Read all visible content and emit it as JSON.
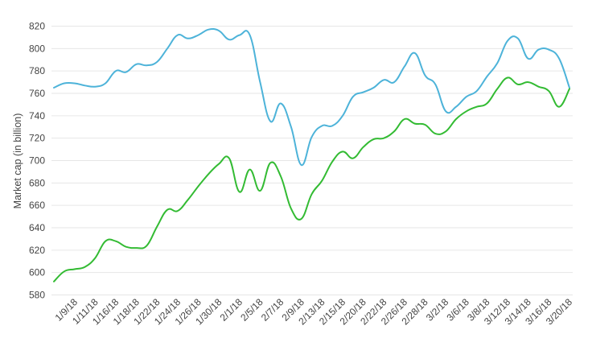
{
  "chart_data": {
    "type": "line",
    "title": "",
    "xlabel": "",
    "ylabel": "Market cap (in billion)",
    "ylim": [
      575,
      830
    ],
    "yticks": [
      580,
      600,
      620,
      640,
      660,
      680,
      700,
      720,
      740,
      760,
      780,
      800,
      820
    ],
    "grid": true,
    "legend": "none",
    "x_tick_labels": [
      "1/9/18",
      "1/11/18",
      "1/16/18",
      "1/18/18",
      "1/22/18",
      "1/24/18",
      "1/26/18",
      "1/30/18",
      "2/1/18",
      "2/5/18",
      "2/7/18",
      "2/9/18",
      "2/13/18",
      "2/15/18",
      "2/20/18",
      "2/22/18",
      "2/26/18",
      "2/28/18",
      "3/2/18",
      "3/6/18",
      "3/8/18",
      "3/12/18",
      "3/14/18",
      "3/16/18",
      "3/20/18"
    ],
    "x": [
      0,
      1,
      2,
      3,
      4,
      5,
      6,
      7,
      8,
      9,
      10,
      11,
      12,
      13,
      14,
      15,
      16,
      17,
      18,
      19,
      20,
      21,
      22,
      23,
      24,
      25,
      26,
      27,
      28,
      29,
      30,
      31,
      32,
      33,
      34,
      35,
      36,
      37,
      38,
      39,
      40,
      41,
      42,
      43,
      44,
      45,
      46,
      47,
      48,
      49,
      50
    ],
    "series": [
      {
        "color": "#4db3d9",
        "values": [
          765,
          769,
          769,
          767,
          766,
          769,
          780,
          779,
          786,
          785,
          788,
          800,
          812,
          809,
          812,
          817,
          816,
          808,
          812,
          812,
          770,
          735,
          751,
          730,
          696,
          721,
          731,
          731,
          740,
          757,
          761,
          765,
          772,
          770,
          784,
          796,
          776,
          768,
          744,
          748,
          757,
          762,
          775,
          787,
          807,
          809,
          791,
          799,
          799,
          791,
          765
        ]
      },
      {
        "color": "#33bb33",
        "values": [
          592,
          601,
          603,
          605,
          613,
          628,
          628,
          623,
          622,
          624,
          641,
          656,
          655,
          665,
          677,
          688,
          697,
          702,
          672,
          692,
          673,
          698,
          686,
          657,
          648,
          670,
          682,
          699,
          708,
          702,
          712,
          719,
          720,
          726,
          737,
          733,
          732,
          724,
          726,
          737,
          744,
          748,
          751,
          764,
          774,
          768,
          770,
          766,
          762,
          748,
          764
        ]
      }
    ]
  }
}
